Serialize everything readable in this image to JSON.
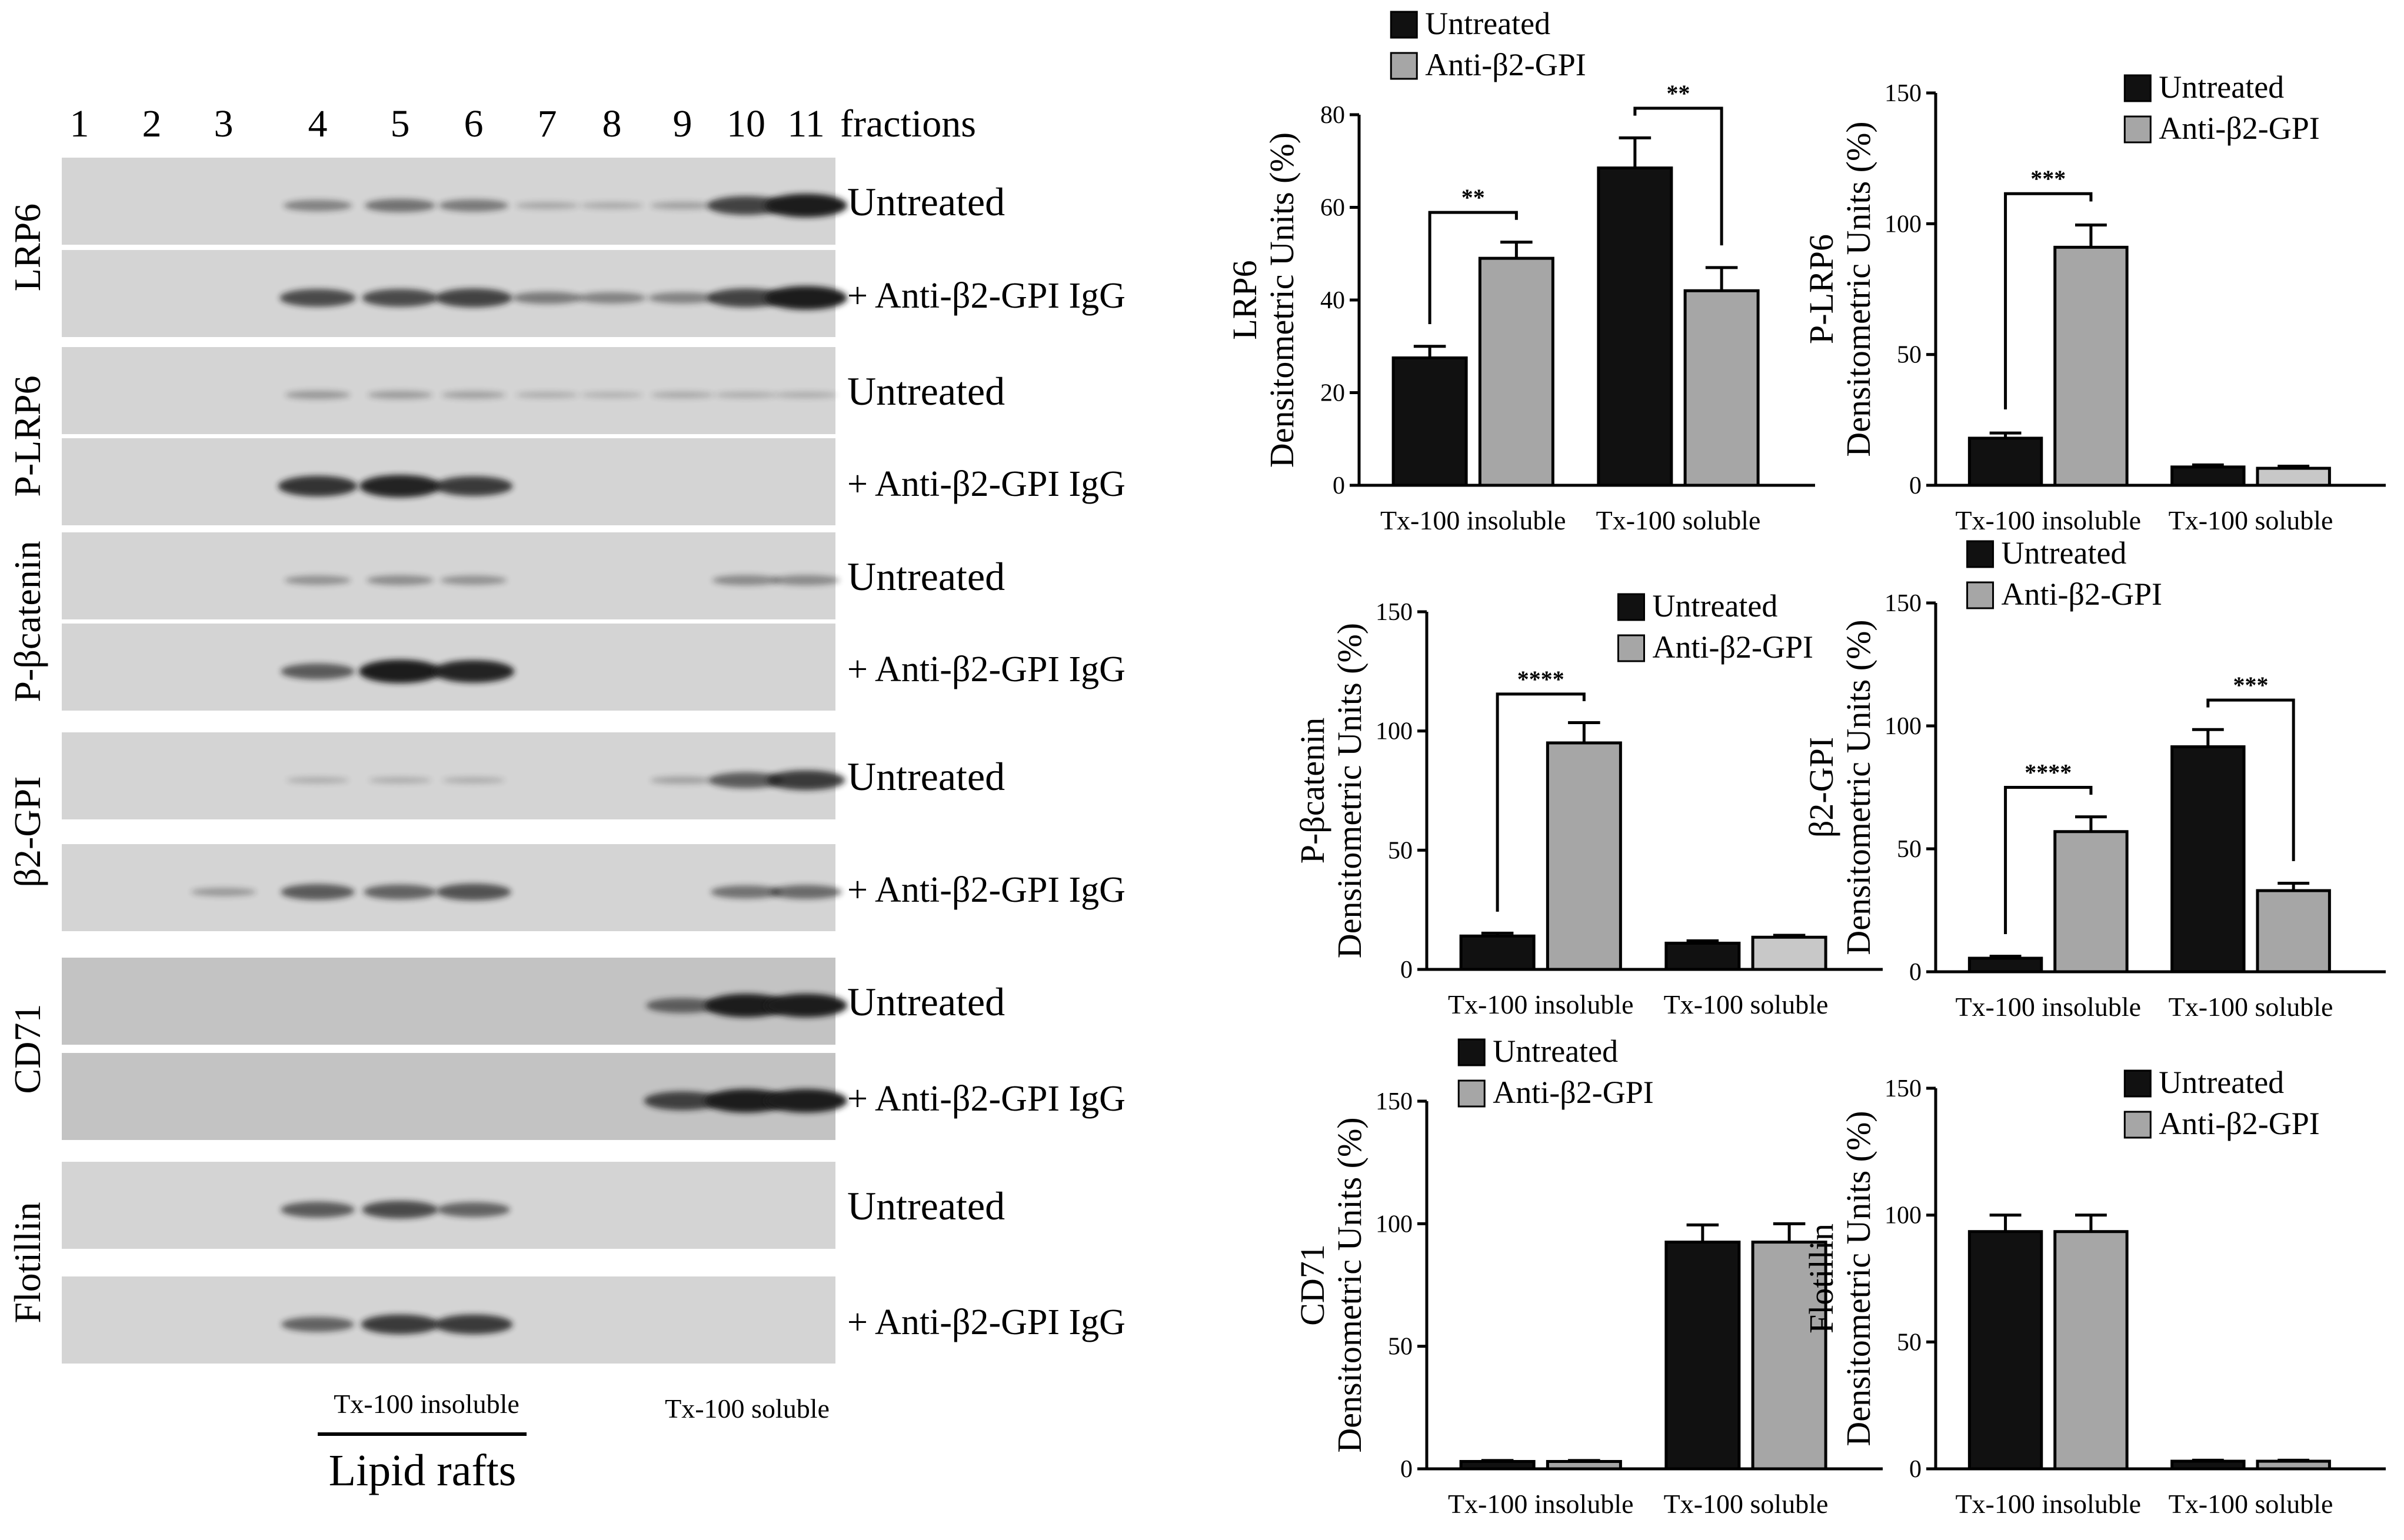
{
  "colors": {
    "untreated": "#111111",
    "treated": "#a6a6a6",
    "treated_light": "#c8c8c8",
    "blot_bg": "#d4d4d4",
    "blot_bg_dark": "#c3c3c3",
    "band": "#1a1a1a"
  },
  "blot": {
    "fraction_numbers": [
      "1",
      "2",
      "3",
      "4",
      "5",
      "6",
      "7",
      "8",
      "9",
      "10",
      "11"
    ],
    "fractions_label": "fractions",
    "groups": [
      {
        "protein": "LRP6",
        "rows": [
          {
            "condition": "Untreated",
            "bands": [
              0,
              0,
              0,
              0.35,
              0.45,
              0.4,
              0.12,
              0.1,
              0.15,
              0.75,
              1.0
            ]
          },
          {
            "condition": "+ Anti-β2-GPI IgG",
            "bands": [
              0,
              0,
              0,
              0.7,
              0.7,
              0.75,
              0.4,
              0.35,
              0.35,
              0.75,
              1.0
            ]
          }
        ]
      },
      {
        "protein": "P-LRP6",
        "rows": [
          {
            "condition": "Untreated",
            "bands": [
              0,
              0,
              0,
              0.2,
              0.18,
              0.15,
              0.08,
              0.06,
              0.1,
              0.08,
              0.08
            ]
          },
          {
            "condition": "+ Anti-β2-GPI IgG",
            "bands": [
              0,
              0,
              0,
              0.85,
              0.95,
              0.8,
              0,
              0,
              0,
              0,
              0
            ]
          }
        ]
      },
      {
        "protein": "P-βcatenin",
        "rows": [
          {
            "condition": "Untreated",
            "bands": [
              0,
              0,
              0,
              0.25,
              0.28,
              0.25,
              0,
              0,
              0,
              0.3,
              0.3
            ]
          },
          {
            "condition": "+ Anti-β2-GPI IgG",
            "bands": [
              0,
              0,
              0,
              0.6,
              1.0,
              0.95,
              0,
              0,
              0,
              0,
              0
            ]
          }
        ]
      },
      {
        "protein": "β2-GPI",
        "rows": [
          {
            "condition": "Untreated",
            "bands": [
              0,
              0,
              0,
              0.08,
              0.08,
              0.08,
              0,
              0,
              0.15,
              0.6,
              0.8
            ]
          },
          {
            "condition": "+ Anti-β2-GPI IgG",
            "bands": [
              0,
              0,
              0.2,
              0.6,
              0.55,
              0.65,
              0,
              0,
              0,
              0.45,
              0.5
            ]
          }
        ]
      },
      {
        "protein": "CD71",
        "rows": [
          {
            "condition": "Untreated",
            "bands": [
              0,
              0,
              0,
              0,
              0,
              0,
              0,
              0,
              0.55,
              1.0,
              1.0
            ]
          },
          {
            "condition": "+ Anti-β2-GPI IgG",
            "bands": [
              0,
              0,
              0,
              0,
              0,
              0,
              0,
              0,
              0.75,
              1.0,
              1.0
            ]
          }
        ]
      },
      {
        "protein": "Flotillin",
        "rows": [
          {
            "condition": "Untreated",
            "bands": [
              0,
              0,
              0,
              0.6,
              0.7,
              0.55,
              0,
              0,
              0,
              0,
              0
            ]
          },
          {
            "condition": "+ Anti-β2-GPI IgG",
            "bands": [
              0,
              0,
              0,
              0.55,
              0.8,
              0.8,
              0,
              0,
              0,
              0,
              0
            ]
          }
        ]
      }
    ],
    "bottom_labels": {
      "insoluble": "Tx-100 insoluble",
      "soluble": "Tx-100 soluble",
      "rafts": "Lipid rafts"
    }
  },
  "chart_data": [
    {
      "type": "bar",
      "protein": "LRP6",
      "ylabel_line1": "LRP6",
      "ylabel_line2": "Densitometric Units (%)",
      "categories": [
        "Tx-100 insoluble",
        "Tx-100 soluble"
      ],
      "ylim": [
        0,
        80
      ],
      "yticks": [
        "0",
        "20",
        "40",
        "60",
        "80"
      ],
      "series": [
        {
          "name": "Untreated",
          "values": [
            27.5,
            68.5
          ],
          "errors": [
            2.5,
            6.5
          ]
        },
        {
          "name": "Anti-β2-GPI",
          "values": [
            49,
            42
          ],
          "errors": [
            3.5,
            5
          ]
        }
      ],
      "legend": "top-left",
      "significance": [
        {
          "category": 0,
          "label": "**"
        },
        {
          "category": 1,
          "label": "**"
        }
      ]
    },
    {
      "type": "bar",
      "protein": "P-LRP6",
      "ylabel_line1": "P-LRP6",
      "ylabel_line2": "Densitometric Units (%)",
      "categories": [
        "Tx-100 insoluble",
        "Tx-100 soluble"
      ],
      "ylim": [
        0,
        150
      ],
      "yticks": [
        "0",
        "50",
        "100",
        "150"
      ],
      "series": [
        {
          "name": "Untreated",
          "values": [
            18,
            7
          ],
          "errors": [
            2,
            0.8
          ]
        },
        {
          "name": "Anti-β2-GPI",
          "values": [
            91,
            6.5
          ],
          "errors": [
            8.5,
            0.8
          ]
        }
      ],
      "legend": "top-right",
      "significance": [
        {
          "category": 0,
          "label": "***"
        }
      ]
    },
    {
      "type": "bar",
      "protein": "P-βcatenin",
      "ylabel_line1": "P-βcatenin",
      "ylabel_line2": "Densitometric Units (%)",
      "categories": [
        "Tx-100 insoluble",
        "Tx-100 soluble"
      ],
      "ylim": [
        0,
        150
      ],
      "yticks": [
        "0",
        "50",
        "100",
        "150"
      ],
      "series": [
        {
          "name": "Untreated",
          "values": [
            14,
            11
          ],
          "errors": [
            1.2,
            1
          ]
        },
        {
          "name": "Anti-β2-GPI",
          "values": [
            95,
            13.5
          ],
          "errors": [
            8.5,
            0.8
          ]
        }
      ],
      "legend": "top-right",
      "significance": [
        {
          "category": 0,
          "label": "****"
        }
      ]
    },
    {
      "type": "bar",
      "protein": "β2-GPI",
      "ylabel_line1": "β2-GPI",
      "ylabel_line2": "Densitometric Units (%)",
      "categories": [
        "Tx-100 insoluble",
        "Tx-100 soluble"
      ],
      "ylim": [
        0,
        150
      ],
      "yticks": [
        "0",
        "50",
        "100",
        "150"
      ],
      "series": [
        {
          "name": "Untreated",
          "values": [
            5.5,
            91.5
          ],
          "errors": [
            0.8,
            7
          ]
        },
        {
          "name": "Anti-β2-GPI",
          "values": [
            57,
            33
          ],
          "errors": [
            6,
            3
          ]
        }
      ],
      "legend": "top-left",
      "significance": [
        {
          "category": 0,
          "label": "****"
        },
        {
          "category": 1,
          "label": "***"
        }
      ]
    },
    {
      "type": "bar",
      "protein": "CD71",
      "ylabel_line1": "CD71",
      "ylabel_line2": "Densitometric Units (%)",
      "categories": [
        "Tx-100 insoluble",
        "Tx-100 soluble"
      ],
      "ylim": [
        0,
        150
      ],
      "yticks": [
        "0",
        "50",
        "100",
        "150"
      ],
      "series": [
        {
          "name": "Untreated",
          "values": [
            3,
            92.5
          ],
          "errors": [
            0.4,
            7
          ]
        },
        {
          "name": "Anti-β2-GPI",
          "values": [
            3,
            92.5
          ],
          "errors": [
            0.4,
            7.5
          ]
        }
      ],
      "legend": "top-left",
      "significance": []
    },
    {
      "type": "bar",
      "protein": "Flotillin",
      "ylabel_line1": "Flotillin",
      "ylabel_line2": "Densitometric Units (%)",
      "categories": [
        "Tx-100 insoluble",
        "Tx-100 soluble"
      ],
      "ylim": [
        0,
        150
      ],
      "yticks": [
        "0",
        "50",
        "100",
        "150"
      ],
      "series": [
        {
          "name": "Untreated",
          "values": [
            93.5,
            3
          ],
          "errors": [
            6.5,
            0.4
          ]
        },
        {
          "name": "Anti-β2-GPI",
          "values": [
            93.5,
            3
          ],
          "errors": [
            6.5,
            0.4
          ]
        }
      ],
      "legend": "top-right",
      "significance": []
    }
  ]
}
